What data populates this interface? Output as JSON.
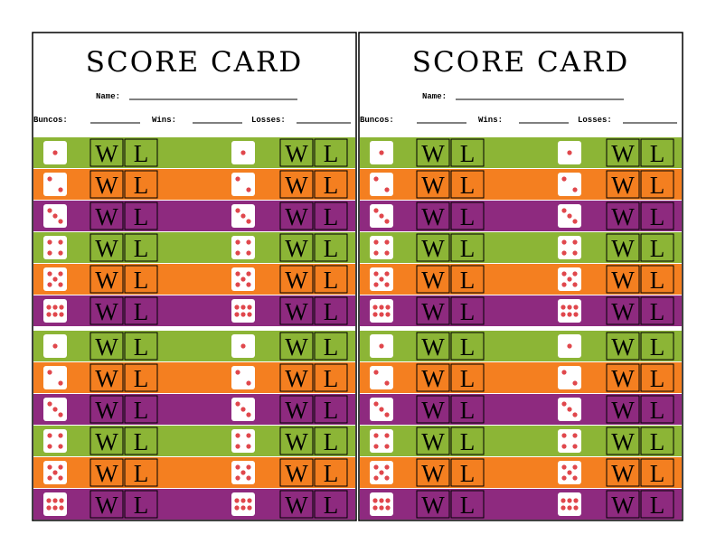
{
  "cards": [
    {
      "title": "SCORE CARD",
      "name_label": "Name:",
      "buncos_label": "Buncos:",
      "wins_label": "Wins:",
      "losses_label": "Losses:"
    },
    {
      "title": "SCORE CARD",
      "name_label": "Name:",
      "buncos_label": "Buncos:",
      "wins_label": "Wins:",
      "losses_label": "Losses:"
    }
  ],
  "box_labels": {
    "win": "W",
    "loss": "L"
  }
}
